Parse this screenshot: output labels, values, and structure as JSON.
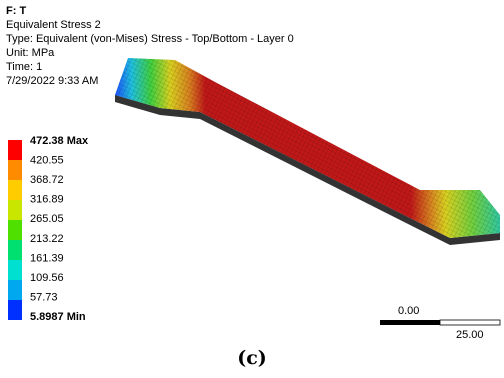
{
  "header": {
    "title": "F: T",
    "lines": [
      "Equivalent Stress 2",
      "Type: Equivalent (von-Mises) Stress - Top/Bottom - Layer 0",
      "Unit: MPa",
      "Time: 1",
      "7/29/2022 9:33 AM"
    ]
  },
  "legend": {
    "labels": [
      "472.38 Max",
      "420.55",
      "368.72",
      "316.89",
      "265.05",
      "213.22",
      "161.39",
      "109.56",
      "57.73",
      "5.8987 Min"
    ]
  },
  "scale_bar": {
    "start": "0.00",
    "end": "25.00"
  },
  "caption": "(c)"
}
